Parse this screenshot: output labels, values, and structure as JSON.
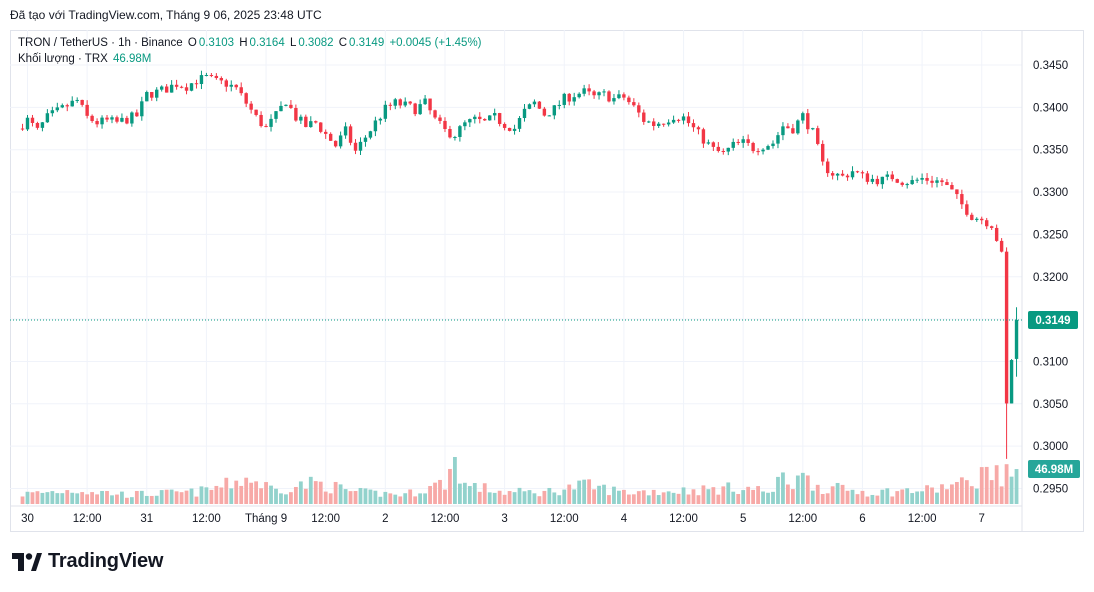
{
  "caption": "Đã tạo với TradingView.com, Tháng 9 06, 2025 23:48 UTC",
  "legend": {
    "symbol": "TRON / TetherUS · 1h · Binance",
    "o_label": "O",
    "o_value": "0.3103",
    "h_label": "H",
    "h_value": "0.3164",
    "l_label": "L",
    "l_value": "0.3082",
    "c_label": "C",
    "c_value": "0.3149",
    "change": "+0.0045 (+1.45%)",
    "volume_label": "Khối lượng · TRX",
    "volume_value": "46.98M"
  },
  "colors": {
    "up": "#089981",
    "down": "#f23645",
    "up_volume": "#92d2cc",
    "down_volume": "#f7a9a7",
    "grid": "#f0f3fa",
    "price_line": "#089981"
  },
  "footer": {
    "brand": "TradingView",
    "logo_icon": "tradingview-logo-icon"
  },
  "chart_data": {
    "type": "candlestick",
    "symbol": "TRON / TetherUS",
    "interval": "1h",
    "exchange": "Binance",
    "last_price": 0.3149,
    "last_price_label": "0.3149",
    "last_volume_label": "46.98M",
    "ylim": [
      0.2935,
      0.3485
    ],
    "y_ticks": [
      "0.3450",
      "0.3400",
      "0.3350",
      "0.3300",
      "0.3250",
      "0.3200",
      "0.3150",
      "0.3100",
      "0.3050",
      "0.3000",
      "0.2950"
    ],
    "x_ticks": [
      {
        "label": "30",
        "hour": 0
      },
      {
        "label": "12:00",
        "hour": 12
      },
      {
        "label": "31",
        "hour": 24
      },
      {
        "label": "12:00",
        "hour": 36
      },
      {
        "label": "Tháng 9",
        "hour": 48
      },
      {
        "label": "12:00",
        "hour": 60
      },
      {
        "label": "2",
        "hour": 72
      },
      {
        "label": "12:00",
        "hour": 84
      },
      {
        "label": "3",
        "hour": 96
      },
      {
        "label": "12:00",
        "hour": 108
      },
      {
        "label": "4",
        "hour": 120
      },
      {
        "label": "12:00",
        "hour": 132
      },
      {
        "label": "5",
        "hour": 144
      },
      {
        "label": "12:00",
        "hour": 156
      },
      {
        "label": "6",
        "hour": 168
      },
      {
        "label": "12:00",
        "hour": 180
      },
      {
        "label": "7",
        "hour": 192
      }
    ],
    "price_keyframes": [
      [
        -2,
        0.3375
      ],
      [
        0,
        0.3385
      ],
      [
        2,
        0.3372
      ],
      [
        4,
        0.3388
      ],
      [
        6,
        0.3395
      ],
      [
        8,
        0.3402
      ],
      [
        10,
        0.3408
      ],
      [
        12,
        0.3388
      ],
      [
        14,
        0.3382
      ],
      [
        16,
        0.3384
      ],
      [
        18,
        0.3382
      ],
      [
        20,
        0.3386
      ],
      [
        22,
        0.339
      ],
      [
        24,
        0.3415
      ],
      [
        26,
        0.3418
      ],
      [
        28,
        0.3422
      ],
      [
        30,
        0.3428
      ],
      [
        32,
        0.3425
      ],
      [
        34,
        0.3432
      ],
      [
        36,
        0.3435
      ],
      [
        38,
        0.343
      ],
      [
        40,
        0.3428
      ],
      [
        42,
        0.3422
      ],
      [
        44,
        0.3405
      ],
      [
        46,
        0.3388
      ],
      [
        48,
        0.3375
      ],
      [
        50,
        0.339
      ],
      [
        52,
        0.3408
      ],
      [
        54,
        0.3388
      ],
      [
        56,
        0.3378
      ],
      [
        58,
        0.3382
      ],
      [
        60,
        0.3368
      ],
      [
        62,
        0.3355
      ],
      [
        64,
        0.3372
      ],
      [
        66,
        0.3348
      ],
      [
        68,
        0.3365
      ],
      [
        70,
        0.3382
      ],
      [
        72,
        0.3398
      ],
      [
        74,
        0.3405
      ],
      [
        76,
        0.3402
      ],
      [
        78,
        0.3398
      ],
      [
        80,
        0.3405
      ],
      [
        82,
        0.3385
      ],
      [
        84,
        0.3372
      ],
      [
        86,
        0.3368
      ],
      [
        88,
        0.338
      ],
      [
        90,
        0.3385
      ],
      [
        92,
        0.3382
      ],
      [
        94,
        0.3388
      ],
      [
        96,
        0.338
      ],
      [
        98,
        0.3375
      ],
      [
        100,
        0.3395
      ],
      [
        102,
        0.3405
      ],
      [
        104,
        0.3392
      ],
      [
        106,
        0.3398
      ],
      [
        108,
        0.341
      ],
      [
        110,
        0.3415
      ],
      [
        112,
        0.3418
      ],
      [
        114,
        0.3412
      ],
      [
        116,
        0.3415
      ],
      [
        118,
        0.341
      ],
      [
        120,
        0.3412
      ],
      [
        122,
        0.34
      ],
      [
        124,
        0.3385
      ],
      [
        126,
        0.338
      ],
      [
        128,
        0.3384
      ],
      [
        130,
        0.339
      ],
      [
        132,
        0.3388
      ],
      [
        134,
        0.3375
      ],
      [
        136,
        0.3362
      ],
      [
        138,
        0.335
      ],
      [
        140,
        0.3345
      ],
      [
        142,
        0.3355
      ],
      [
        144,
        0.3358
      ],
      [
        146,
        0.3352
      ],
      [
        148,
        0.3355
      ],
      [
        150,
        0.3358
      ],
      [
        152,
        0.3378
      ],
      [
        154,
        0.3375
      ],
      [
        156,
        0.339
      ],
      [
        158,
        0.337
      ],
      [
        160,
        0.3332
      ],
      [
        162,
        0.3322
      ],
      [
        164,
        0.3318
      ],
      [
        166,
        0.3325
      ],
      [
        168,
        0.3318
      ],
      [
        170,
        0.3315
      ],
      [
        172,
        0.3314
      ],
      [
        174,
        0.3318
      ],
      [
        176,
        0.3313
      ],
      [
        178,
        0.3312
      ],
      [
        180,
        0.3316
      ],
      [
        182,
        0.3314
      ],
      [
        184,
        0.3312
      ],
      [
        186,
        0.33
      ],
      [
        188,
        0.3285
      ],
      [
        190,
        0.3272
      ],
      [
        192,
        0.3268
      ],
      [
        194,
        0.3262
      ],
      [
        195,
        0.3245
      ],
      [
        196,
        0.3225
      ],
      [
        197,
        0.3048
      ],
      [
        198,
        0.3103
      ],
      [
        199,
        0.3149
      ]
    ],
    "volume_keyframes": [
      [
        -2,
        0.2
      ],
      [
        10,
        0.3
      ],
      [
        20,
        0.2
      ],
      [
        34,
        0.25
      ],
      [
        40,
        0.4
      ],
      [
        44,
        0.55
      ],
      [
        50,
        0.3
      ],
      [
        58,
        0.45
      ],
      [
        66,
        0.25
      ],
      [
        76,
        0.2
      ],
      [
        84,
        0.45
      ],
      [
        86,
        0.95
      ],
      [
        88,
        0.4
      ],
      [
        96,
        0.25
      ],
      [
        104,
        0.25
      ],
      [
        112,
        0.4
      ],
      [
        120,
        0.25
      ],
      [
        136,
        0.3
      ],
      [
        144,
        0.35
      ],
      [
        150,
        0.25
      ],
      [
        152,
        0.6
      ],
      [
        154,
        0.4
      ],
      [
        155,
        0.85
      ],
      [
        156,
        0.55
      ],
      [
        160,
        0.35
      ],
      [
        170,
        0.25
      ],
      [
        182,
        0.3
      ],
      [
        186,
        0.4
      ],
      [
        190,
        0.45
      ],
      [
        194,
        0.8
      ],
      [
        196,
        0.4
      ],
      [
        197,
        1.0
      ],
      [
        198,
        0.75
      ],
      [
        199,
        0.55
      ]
    ],
    "volume_scale_note": "relative"
  }
}
